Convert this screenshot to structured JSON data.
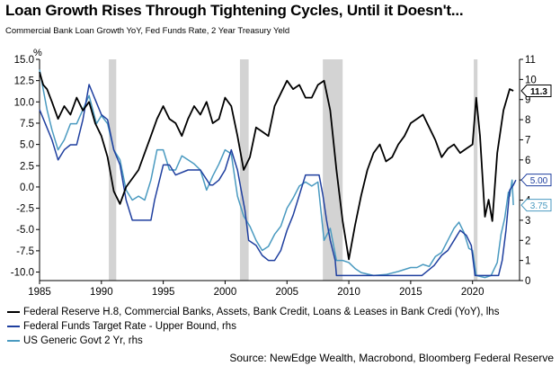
{
  "title": "Loan Growth Rises Through Tightening Cycles, Until it Doesn't...",
  "subtitle": "Commercial Bank Loan Growth YoY, Fed Funds Rate, 2 Year Treasury Yeld",
  "source": "Source: NewEdge Wealth, Macrobond, Bloomberg Federal Reserve",
  "colors": {
    "loan": "#000000",
    "fedfunds": "#1f3f9f",
    "twoyear": "#4a9ac0",
    "recession": "#c8c8c8"
  },
  "chart_data": {
    "type": "line",
    "left_axis": {
      "unit_label": "%",
      "ylim": [
        -11,
        15
      ],
      "ticks": [
        "15.0",
        "12.5",
        "10.0",
        "7.5",
        "5.0",
        "2.5",
        "0.0",
        "-2.5",
        "-5.0",
        "-7.5",
        "-10.0"
      ]
    },
    "right_axis": {
      "ylim": [
        0,
        11
      ],
      "ticks": [
        "11",
        "10",
        "9",
        "8",
        "7",
        "6",
        "5",
        "4",
        "3",
        "2",
        "1",
        "0"
      ]
    },
    "x_axis": {
      "xlim": [
        1985,
        2023.8
      ],
      "ticks": [
        "1985",
        "1990",
        "1995",
        "2000",
        "2005",
        "2010",
        "2015",
        "2020"
      ]
    },
    "recessions": [
      [
        1990.6,
        1991.2
      ],
      [
        2001.2,
        2001.9
      ],
      [
        2007.9,
        2009.5
      ],
      [
        2020.1,
        2020.4
      ]
    ],
    "end_labels": {
      "loan": "11.3",
      "fedfunds": "5.00",
      "twoyear": "3.75"
    },
    "series": [
      {
        "name": "Federal Reserve H.8, Commercial Banks, Assets, Bank Credit, Loans & Leases in Bank Credi (YoY), lhs",
        "axis": "left",
        "key": "loan",
        "x": [
          1985,
          1985.3,
          1985.6,
          1986,
          1986.5,
          1987,
          1987.5,
          1988,
          1988.5,
          1989,
          1989.5,
          1990,
          1990.5,
          1991,
          1991.5,
          1992,
          1992.5,
          1993,
          1993.5,
          1994,
          1994.5,
          1995,
          1995.5,
          1996,
          1996.5,
          1997,
          1997.5,
          1998,
          1998.5,
          1999,
          1999.5,
          2000,
          2000.5,
          2001,
          2001.5,
          2002,
          2002.5,
          2003,
          2003.5,
          2004,
          2004.5,
          2005,
          2005.5,
          2006,
          2006.5,
          2007,
          2007.5,
          2008,
          2008.5,
          2009,
          2009.5,
          2010,
          2010.5,
          2011,
          2011.5,
          2012,
          2012.5,
          2013,
          2013.5,
          2014,
          2014.5,
          2015,
          2015.5,
          2016,
          2016.5,
          2017,
          2017.5,
          2018,
          2018.5,
          2019,
          2019.5,
          2020,
          2020.3,
          2020.6,
          2021,
          2021.3,
          2021.6,
          2022,
          2022.5,
          2023,
          2023.3
        ],
        "y": [
          13.5,
          12.0,
          11.5,
          10.0,
          8.0,
          9.5,
          8.5,
          10.5,
          9.0,
          10.0,
          7.5,
          6.0,
          3.5,
          -0.5,
          -2.0,
          0.0,
          1.0,
          2.0,
          4.0,
          6.0,
          8.0,
          9.5,
          8.0,
          7.5,
          6.0,
          8.0,
          9.5,
          8.5,
          10.0,
          7.5,
          8.0,
          10.5,
          9.5,
          6.0,
          2.0,
          3.5,
          7.0,
          6.5,
          6.0,
          9.5,
          11.0,
          12.5,
          11.5,
          12.0,
          10.5,
          10.5,
          12.0,
          12.5,
          9.0,
          2.0,
          -4.0,
          -8.5,
          -4.5,
          -1.0,
          2.0,
          4.0,
          5.0,
          3.0,
          3.5,
          5.0,
          6.0,
          7.5,
          8.0,
          8.5,
          7.0,
          5.5,
          3.5,
          4.5,
          5.0,
          4.0,
          4.5,
          5.0,
          10.5,
          6.0,
          -3.5,
          -1.5,
          -4.0,
          4.0,
          9.0,
          11.5,
          11.3
        ]
      },
      {
        "name": "Federal Funds Target Rate - Upper Bound, rhs",
        "axis": "right",
        "key": "fedfunds",
        "x": [
          1985,
          1985.5,
          1986,
          1986.5,
          1987,
          1987.5,
          1988,
          1988.5,
          1989,
          1989.5,
          1990,
          1990.5,
          1991,
          1991.5,
          1992,
          1992.5,
          1993,
          1994,
          1994.3,
          1994.6,
          1995,
          1995.5,
          1996,
          1997,
          1998,
          1998.8,
          1999,
          1999.5,
          2000,
          2000.5,
          2001,
          2001.3,
          2001.6,
          2001.9,
          2002.5,
          2003,
          2003.5,
          2004,
          2004.5,
          2005,
          2005.5,
          2006,
          2006.5,
          2007,
          2007.6,
          2007.9,
          2008.2,
          2008.5,
          2008.9,
          2009,
          2015.9,
          2016.9,
          2017.5,
          2018,
          2018.5,
          2019,
          2019.5,
          2019.9,
          2020.2,
          2022.1,
          2022.4,
          2022.7,
          2023,
          2023.3,
          2023.5
        ],
        "y": [
          8.5,
          7.75,
          7.0,
          6.0,
          6.5,
          6.75,
          6.75,
          8.0,
          9.75,
          9.0,
          8.25,
          8.0,
          6.5,
          5.75,
          4.0,
          3.0,
          3.0,
          3.0,
          4.0,
          4.75,
          5.75,
          5.75,
          5.25,
          5.5,
          5.5,
          4.75,
          4.75,
          5.0,
          5.5,
          6.5,
          5.5,
          4.5,
          3.5,
          2.0,
          1.75,
          1.25,
          1.0,
          1.0,
          1.5,
          2.5,
          3.25,
          4.25,
          5.25,
          5.25,
          5.25,
          4.25,
          3.0,
          2.0,
          1.0,
          0.25,
          0.25,
          0.75,
          1.25,
          1.5,
          2.0,
          2.5,
          2.25,
          1.75,
          0.25,
          0.25,
          1.0,
          2.5,
          4.5,
          4.75,
          5.0
        ]
      },
      {
        "name": "US Generic Govt 2 Yr, rhs",
        "axis": "right",
        "key": "twoyear",
        "x": [
          1985,
          1985.3,
          1985.6,
          1986,
          1986.5,
          1987,
          1987.5,
          1988,
          1988.5,
          1989,
          1989.3,
          1989.6,
          1990,
          1990.5,
          1991,
          1991.5,
          1992,
          1992.5,
          1993,
          1993.5,
          1994,
          1994.5,
          1995,
          1995.5,
          1996,
          1996.5,
          1997,
          1997.5,
          1998,
          1998.5,
          1999,
          1999.5,
          2000,
          2000.5,
          2001,
          2001.5,
          2002,
          2002.5,
          2003,
          2003.5,
          2004,
          2004.5,
          2005,
          2005.5,
          2006,
          2006.5,
          2007,
          2007.5,
          2008,
          2008.5,
          2009,
          2009.5,
          2010,
          2010.5,
          2011,
          2012,
          2013,
          2014,
          2015,
          2015.5,
          2016,
          2016.5,
          2017,
          2017.5,
          2018,
          2018.5,
          2018.9,
          2019.3,
          2019.7,
          2020,
          2020.3,
          2021,
          2021.5,
          2022,
          2022.3,
          2022.6,
          2022.9,
          2023,
          2023.2,
          2023.3
        ],
        "y": [
          10.5,
          9.5,
          8.5,
          7.5,
          6.5,
          7.0,
          7.8,
          7.8,
          8.5,
          9.2,
          8.5,
          7.8,
          8.2,
          7.8,
          6.5,
          6.0,
          4.5,
          4.0,
          4.2,
          4.0,
          5.0,
          6.5,
          6.5,
          5.5,
          5.5,
          6.2,
          6.0,
          5.8,
          5.5,
          4.5,
          5.2,
          5.8,
          6.5,
          6.3,
          4.2,
          3.2,
          2.7,
          2.0,
          1.5,
          1.7,
          2.3,
          2.7,
          3.6,
          4.1,
          4.7,
          4.9,
          4.7,
          4.9,
          2.0,
          2.6,
          1.0,
          1.0,
          0.9,
          0.6,
          0.4,
          0.25,
          0.3,
          0.45,
          0.65,
          0.65,
          0.8,
          0.7,
          1.2,
          1.4,
          2.0,
          2.6,
          2.9,
          2.4,
          1.6,
          1.5,
          0.25,
          0.15,
          0.25,
          0.9,
          2.3,
          3.1,
          4.4,
          4.2,
          5.0,
          3.75
        ]
      }
    ]
  }
}
